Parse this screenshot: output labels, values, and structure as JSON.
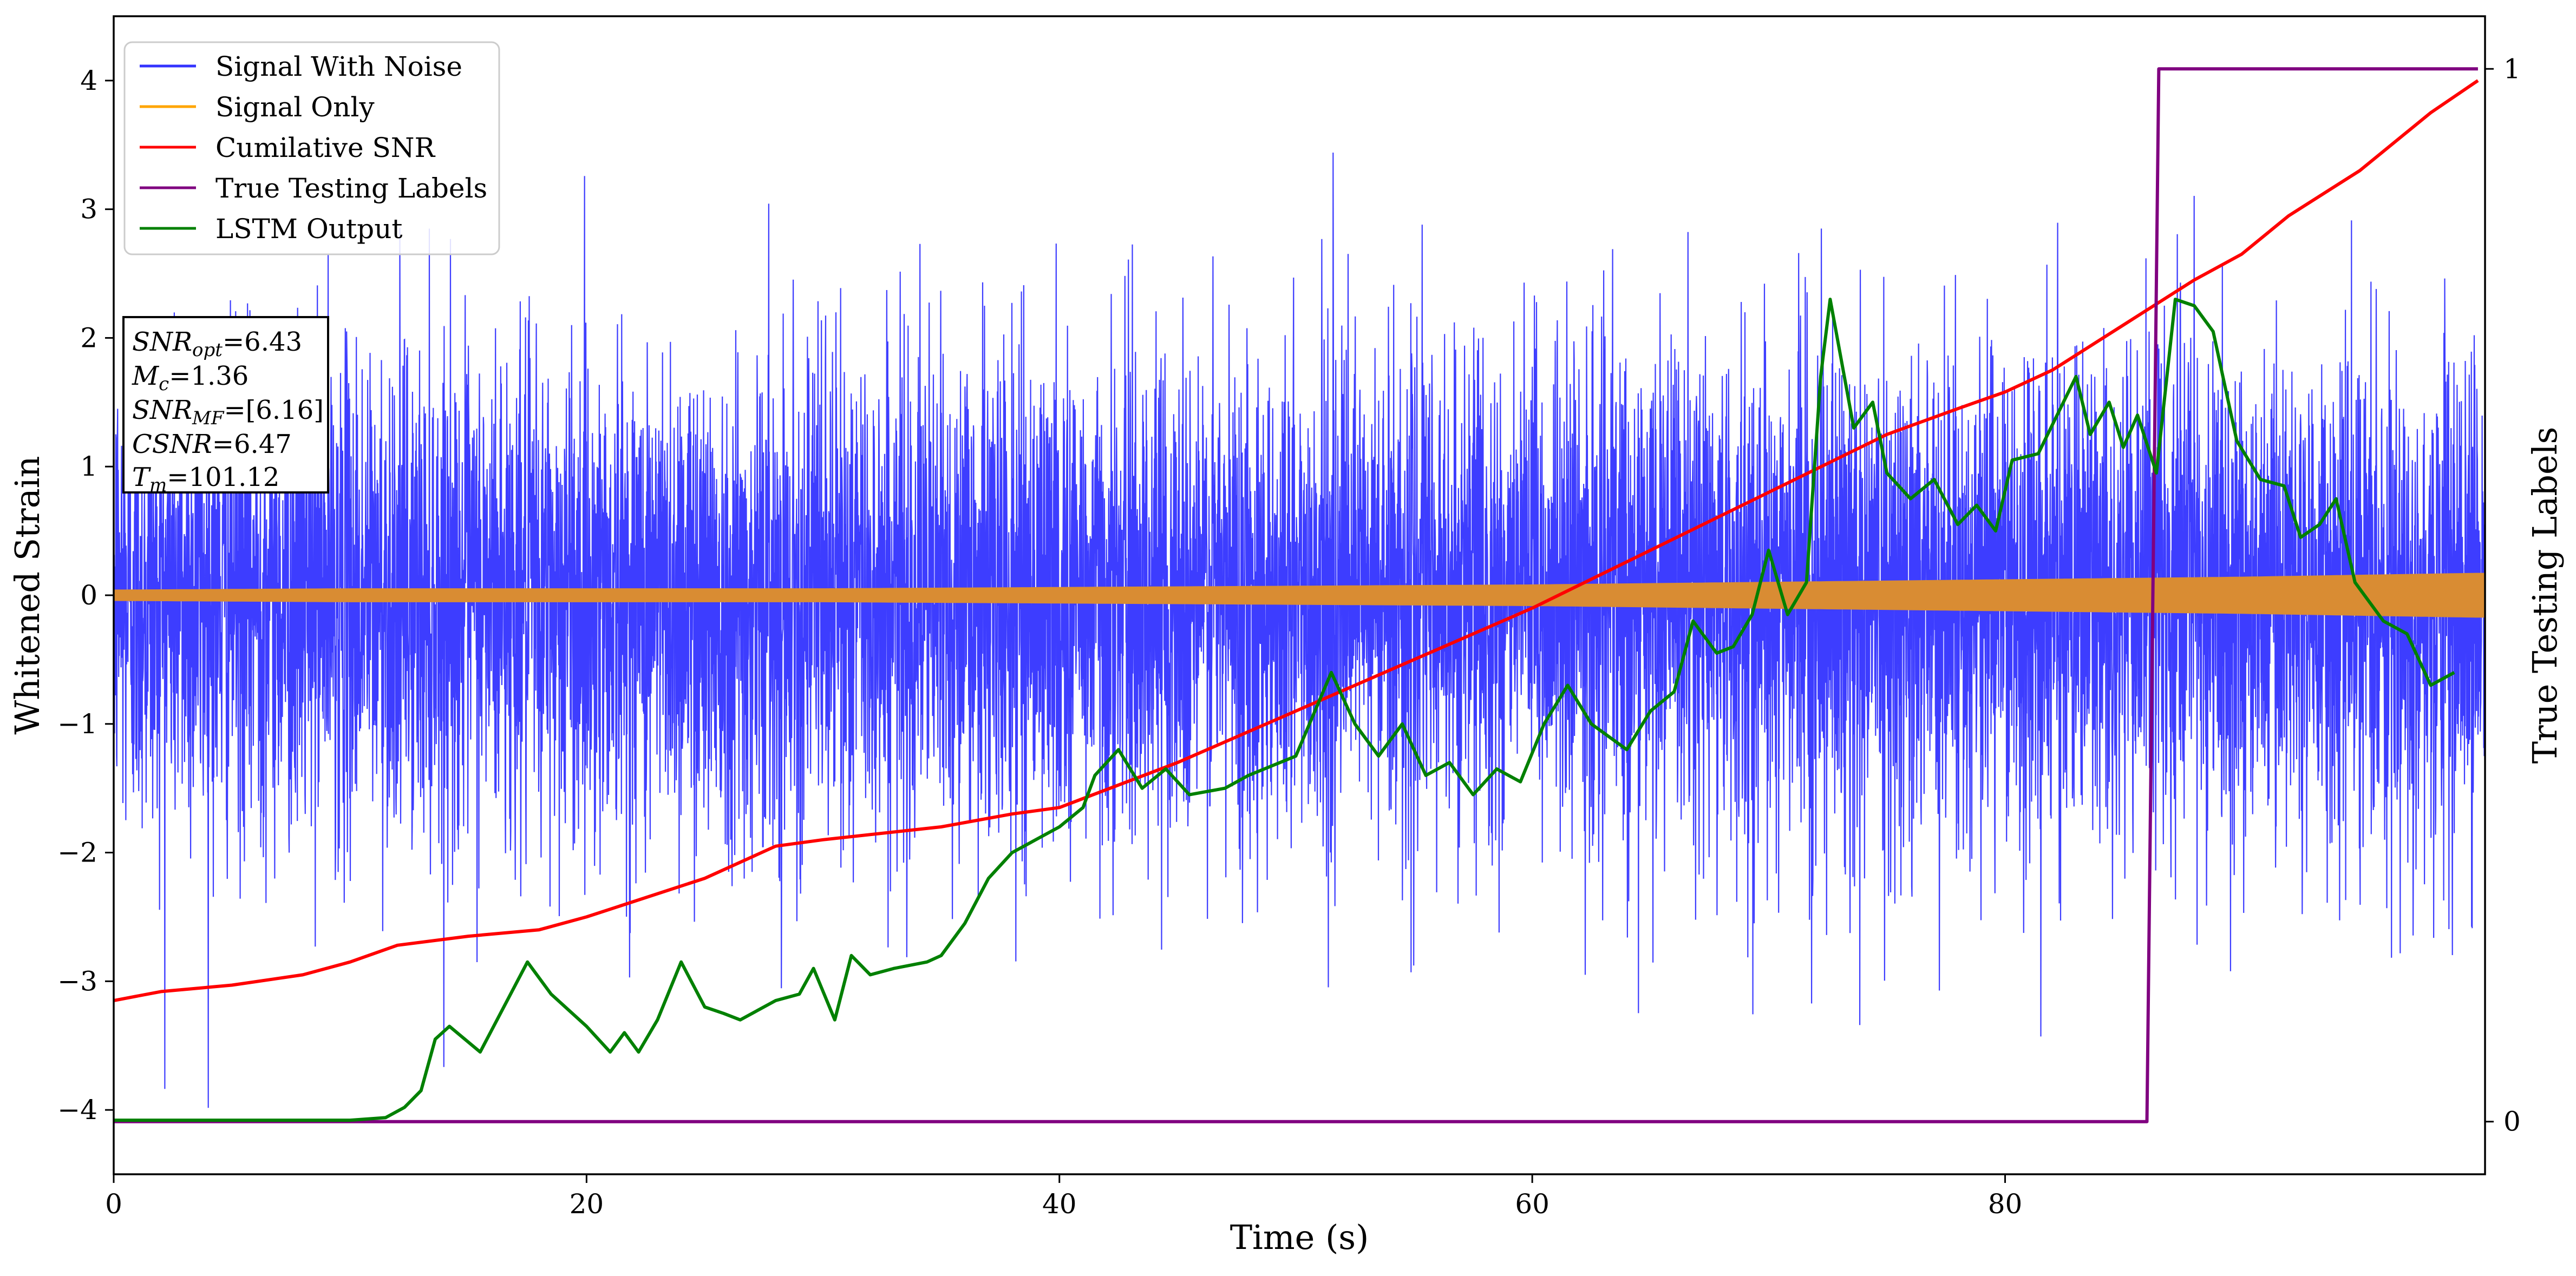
{
  "chart_data": {
    "type": "line",
    "xlabel": "Time (s)",
    "ylabel": "Whitened Strain",
    "y2label": "True Testing Labels",
    "xlim": [
      0,
      100.3
    ],
    "ylim": [
      -4.5,
      4.5
    ],
    "y2lim": [
      -0.05,
      1.05
    ],
    "x_ticks": [
      0,
      20,
      40,
      60,
      80
    ],
    "y_ticks": [
      -4,
      -3,
      -2,
      -1,
      0,
      1,
      2,
      3,
      4
    ],
    "y2_ticks": [
      0,
      1
    ],
    "grid": false,
    "legend_position": "top-left",
    "legend": [
      {
        "name": "Signal With Noise",
        "color": "#3333ff"
      },
      {
        "name": "Signal Only",
        "color": "#ffa500"
      },
      {
        "name": "Cumilative SNR",
        "color": "#ff0000"
      },
      {
        "name": "True Testing Labels",
        "color": "#800080"
      },
      {
        "name": "LSTM Output",
        "color": "#008000"
      }
    ],
    "annotation": [
      {
        "main": "SNR",
        "sub": "opt",
        "rest": "=6.43"
      },
      {
        "main": "M",
        "sub": "c",
        "rest": "=1.36"
      },
      {
        "main": "SNR",
        "sub": "MF",
        "rest": "=[6.16]"
      },
      {
        "main": "CSNR",
        "sub": "",
        "rest": "=6.47"
      },
      {
        "main": "T",
        "sub": "m",
        "rest": "=101.12"
      }
    ],
    "series": [
      {
        "name": "Signal With Noise",
        "axis": "left",
        "color": "#3333ff",
        "style": "dense-noise",
        "typical_amplitude": 1.0,
        "peak_amplitude": 4.1
      },
      {
        "name": "Signal Only",
        "axis": "left",
        "color": "#d98c33",
        "style": "band",
        "x": [
          0,
          10,
          20,
          30,
          40,
          50,
          60,
          70,
          80,
          90,
          100
        ],
        "envelope": [
          0.04,
          0.05,
          0.05,
          0.05,
          0.06,
          0.07,
          0.08,
          0.1,
          0.12,
          0.14,
          0.17
        ]
      },
      {
        "name": "Cumilative SNR",
        "axis": "left",
        "color": "#ff0000",
        "x": [
          0,
          2,
          5,
          8,
          10,
          12,
          15,
          18,
          20,
          25,
          28,
          30,
          35,
          38,
          40,
          45,
          50,
          55,
          60,
          65,
          70,
          75,
          78,
          80,
          82,
          85,
          88,
          90,
          92,
          95,
          98,
          100
        ],
        "y": [
          -3.15,
          -3.08,
          -3.03,
          -2.95,
          -2.85,
          -2.72,
          -2.65,
          -2.6,
          -2.5,
          -2.2,
          -1.95,
          -1.9,
          -1.8,
          -1.7,
          -1.65,
          -1.3,
          -0.9,
          -0.5,
          -0.1,
          0.35,
          0.8,
          1.25,
          1.45,
          1.58,
          1.75,
          2.1,
          2.45,
          2.65,
          2.95,
          3.3,
          3.75,
          4.0
        ]
      },
      {
        "name": "True Testing Labels",
        "axis": "right",
        "color": "#800080",
        "x": [
          0,
          86.0,
          86.5,
          100
        ],
        "y": [
          0,
          0,
          1,
          1
        ]
      },
      {
        "name": "LSTM Output",
        "axis": "left",
        "color": "#008000",
        "x": [
          0,
          10,
          11.5,
          12.3,
          13,
          13.6,
          14.2,
          15.5,
          17.5,
          18.5,
          20,
          21,
          21.6,
          22.2,
          23,
          24,
          25,
          25.8,
          26.5,
          28,
          29,
          29.6,
          30.5,
          31.2,
          32,
          33,
          34.4,
          35,
          36,
          37,
          38,
          39,
          40,
          41,
          41.5,
          42.5,
          43.5,
          44.5,
          45.5,
          47,
          48,
          50,
          51.5,
          52.5,
          53.5,
          54.5,
          55.5,
          56.5,
          57.5,
          58.5,
          59.5,
          60.5,
          61.5,
          62.5,
          64,
          65,
          66,
          66.8,
          67.8,
          68.5,
          69.3,
          70,
          70.8,
          71.6,
          72.2,
          72.6,
          73.6,
          74.4,
          75,
          76,
          77,
          78,
          78.8,
          79.6,
          80.3,
          81.4,
          82.2,
          83,
          83.6,
          84.4,
          85,
          85.6,
          86.4,
          87.2,
          88,
          88.8,
          89.8,
          90.8,
          91.8,
          92.5,
          93.3,
          94,
          94.8,
          96,
          97,
          98,
          99
        ],
        "y": [
          -4.08,
          -4.08,
          -4.06,
          -3.98,
          -3.85,
          -3.45,
          -3.35,
          -3.55,
          -2.85,
          -3.1,
          -3.35,
          -3.55,
          -3.4,
          -3.55,
          -3.3,
          -2.85,
          -3.2,
          -3.25,
          -3.3,
          -3.15,
          -3.1,
          -2.9,
          -3.3,
          -2.8,
          -2.95,
          -2.9,
          -2.85,
          -2.8,
          -2.55,
          -2.2,
          -2.0,
          -1.9,
          -1.8,
          -1.65,
          -1.4,
          -1.2,
          -1.5,
          -1.35,
          -1.55,
          -1.5,
          -1.4,
          -1.25,
          -0.6,
          -1.0,
          -1.25,
          -1.0,
          -1.4,
          -1.3,
          -1.55,
          -1.35,
          -1.45,
          -1.0,
          -0.7,
          -1.0,
          -1.2,
          -0.9,
          -0.75,
          -0.2,
          -0.45,
          -0.4,
          -0.15,
          0.35,
          -0.15,
          0.1,
          1.7,
          2.3,
          1.3,
          1.5,
          0.95,
          0.75,
          0.9,
          0.55,
          0.7,
          0.5,
          1.05,
          1.1,
          1.4,
          1.7,
          1.25,
          1.5,
          1.15,
          1.4,
          0.95,
          2.3,
          2.25,
          2.05,
          1.2,
          0.9,
          0.85,
          0.45,
          0.55,
          0.75,
          0.1,
          -0.2,
          -0.3,
          -0.7,
          -0.6
        ]
      }
    ]
  }
}
